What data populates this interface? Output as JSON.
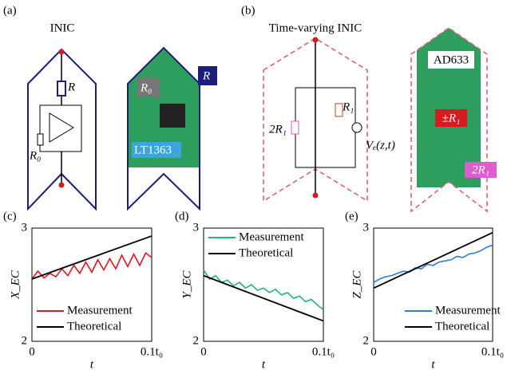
{
  "panel_a": {
    "label": "(a)",
    "title": "INIC",
    "circuit_labels": [
      "R",
      "R₀"
    ],
    "board_labels": [
      "R₀",
      "R",
      "LT1363"
    ]
  },
  "panel_b": {
    "label": "(b)",
    "title": "Time-varying INIC",
    "circuit_labels": [
      "R₁",
      "2R₁",
      "Vₑ(z,t)"
    ],
    "board_labels": [
      "AD633",
      "±R₁",
      "2R₁"
    ]
  },
  "chart_data": [
    {
      "type": "line",
      "panel": "(c)",
      "ylabel": "X_EC",
      "xlabel": "t",
      "xlim": [
        0,
        0.1
      ],
      "ylim": [
        2,
        3
      ],
      "xticks": [
        0,
        {
          "value": 0.1,
          "label": "0.1t₀"
        }
      ],
      "yticks": [
        2,
        3
      ],
      "legend": "lower-left",
      "series": [
        {
          "name": "Measurement",
          "color": "#e8141c",
          "x": [
            0,
            0.005,
            0.01,
            0.015,
            0.02,
            0.025,
            0.03,
            0.035,
            0.04,
            0.045,
            0.05,
            0.055,
            0.06,
            0.065,
            0.07,
            0.075,
            0.08,
            0.085,
            0.09,
            0.095,
            0.1
          ],
          "values": [
            2.55,
            2.62,
            2.56,
            2.6,
            2.57,
            2.64,
            2.58,
            2.67,
            2.6,
            2.7,
            2.61,
            2.72,
            2.63,
            2.73,
            2.64,
            2.76,
            2.66,
            2.77,
            2.67,
            2.78,
            2.74
          ]
        },
        {
          "name": "Theoretical",
          "color": "#000000",
          "x": [
            0,
            0.1
          ],
          "values": [
            2.55,
            2.93
          ]
        }
      ]
    },
    {
      "type": "line",
      "panel": "(d)",
      "ylabel": "Y_EC",
      "xlabel": "t",
      "xlim": [
        0,
        0.1
      ],
      "ylim": [
        2,
        3
      ],
      "xticks": [
        0,
        {
          "value": 0.1,
          "label": "0.1t₀"
        }
      ],
      "yticks": [
        2,
        3
      ],
      "legend": "upper-left",
      "series": [
        {
          "name": "Measurement",
          "color": "#22b573",
          "x": [
            0,
            0.005,
            0.01,
            0.015,
            0.02,
            0.025,
            0.03,
            0.035,
            0.04,
            0.045,
            0.05,
            0.055,
            0.06,
            0.065,
            0.07,
            0.075,
            0.08,
            0.085,
            0.09,
            0.095,
            0.1
          ],
          "values": [
            2.63,
            2.55,
            2.58,
            2.52,
            2.54,
            2.49,
            2.52,
            2.47,
            2.5,
            2.45,
            2.47,
            2.43,
            2.46,
            2.41,
            2.43,
            2.38,
            2.4,
            2.35,
            2.37,
            2.32,
            2.28
          ]
        },
        {
          "name": "Theoretical",
          "color": "#000000",
          "x": [
            0,
            0.1
          ],
          "values": [
            2.58,
            2.18
          ]
        }
      ]
    },
    {
      "type": "line",
      "panel": "(e)",
      "ylabel": "Z_EC",
      "xlabel": "t",
      "xlim": [
        0,
        0.1
      ],
      "ylim": [
        2,
        3
      ],
      "xticks": [
        0,
        {
          "value": 0.1,
          "label": "0.1t₀"
        }
      ],
      "yticks": [
        2,
        3
      ],
      "legend": "lower-right",
      "series": [
        {
          "name": "Measurement",
          "color": "#2a7de1",
          "x": [
            0,
            0.005,
            0.01,
            0.015,
            0.02,
            0.025,
            0.03,
            0.035,
            0.04,
            0.045,
            0.05,
            0.055,
            0.06,
            0.065,
            0.07,
            0.075,
            0.08,
            0.085,
            0.09,
            0.095,
            0.1
          ],
          "values": [
            2.52,
            2.55,
            2.57,
            2.58,
            2.6,
            2.62,
            2.61,
            2.65,
            2.64,
            2.68,
            2.67,
            2.7,
            2.71,
            2.72,
            2.75,
            2.74,
            2.77,
            2.78,
            2.8,
            2.83,
            2.85
          ]
        },
        {
          "name": "Theoretical",
          "color": "#000000",
          "x": [
            0,
            0.1
          ],
          "values": [
            2.47,
            2.96
          ]
        }
      ]
    }
  ]
}
